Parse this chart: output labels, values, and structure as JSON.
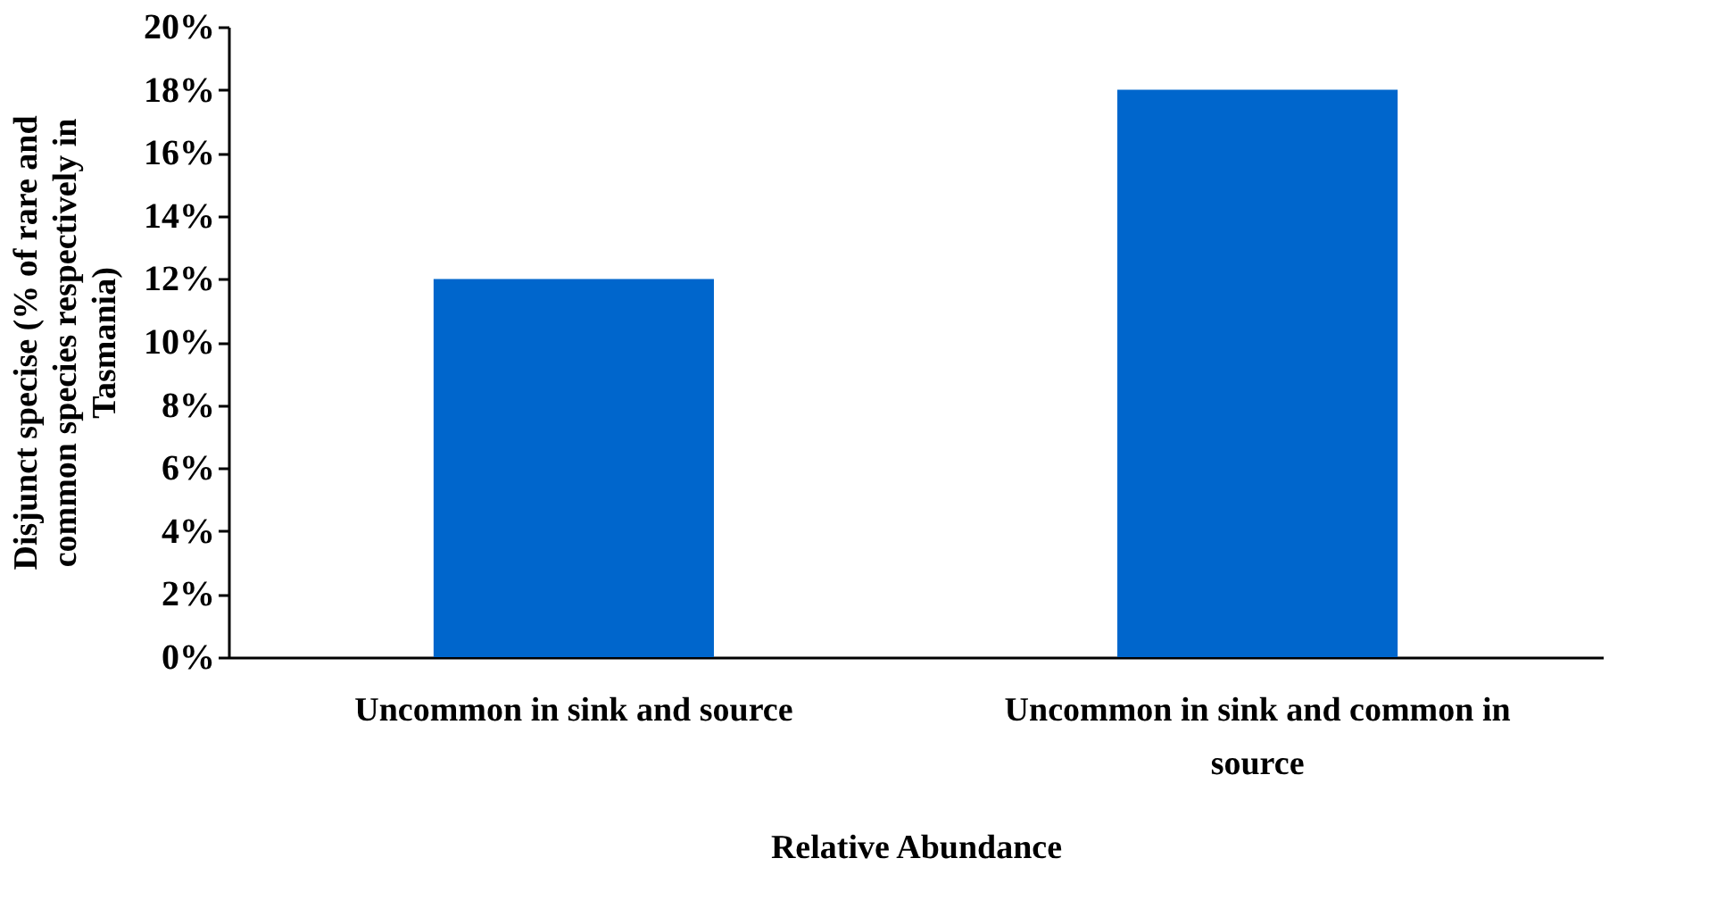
{
  "chart_data": {
    "type": "bar",
    "xlabel": "Relative Abundance",
    "ylabel": "Disjunct specise (% of rare and common species respectively in Tasmania)",
    "categories": [
      "Uncommon in sink and source",
      "Uncommon in sink and  common in source"
    ],
    "values": [
      12,
      18
    ],
    "color": "#0066cc",
    "ylim": [
      0,
      20
    ],
    "yticks": [
      {
        "value": 0,
        "label": "0%"
      },
      {
        "value": 2,
        "label": "2%"
      },
      {
        "value": 4,
        "label": "4%"
      },
      {
        "value": 6,
        "label": "6%"
      },
      {
        "value": 8,
        "label": "8%"
      },
      {
        "value": 10,
        "label": "10%"
      },
      {
        "value": 12,
        "label": "12%"
      },
      {
        "value": 14,
        "label": "14%"
      },
      {
        "value": 16,
        "label": "16%"
      },
      {
        "value": 18,
        "label": "18%"
      },
      {
        "value": 20,
        "label": "20%"
      }
    ],
    "grid": false
  }
}
